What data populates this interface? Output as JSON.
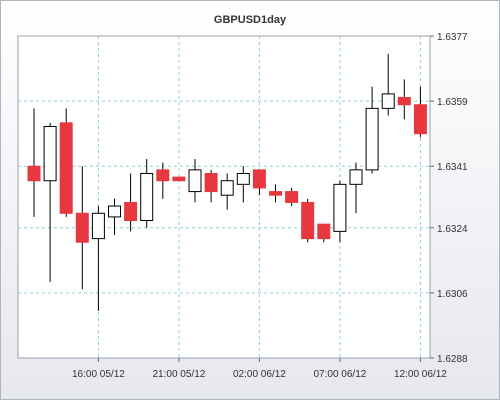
{
  "chart_data": {
    "type": "candlestick",
    "title": "GBPUSD1day",
    "y_axis_side": "right",
    "ylim": [
      1.6288,
      1.6377
    ],
    "y_ticks": [
      "1.6288",
      "1.6306",
      "1.6324",
      "1.6341",
      "1.6359",
      "1.6377"
    ],
    "x_ticks": [
      {
        "label": "16:00 05/12",
        "index": 4
      },
      {
        "label": "21:00 05/12",
        "index": 9
      },
      {
        "label": "02:00 06/12",
        "index": 14
      },
      {
        "label": "07:00 06/12",
        "index": 19
      },
      {
        "label": "12:00 06/12",
        "index": 24
      }
    ],
    "grid": true,
    "up_color": "#ffffff",
    "down_color": "#e8383f",
    "candles": [
      {
        "open": 1.6341,
        "high": 1.6357,
        "low": 1.6327,
        "close": 1.6337
      },
      {
        "open": 1.6337,
        "high": 1.6353,
        "low": 1.6309,
        "close": 1.6352
      },
      {
        "open": 1.6353,
        "high": 1.6357,
        "low": 1.6327,
        "close": 1.6328
      },
      {
        "open": 1.6328,
        "high": 1.6341,
        "low": 1.6307,
        "close": 1.632
      },
      {
        "open": 1.6321,
        "high": 1.633,
        "low": 1.6301,
        "close": 1.6328
      },
      {
        "open": 1.6327,
        "high": 1.6332,
        "low": 1.6322,
        "close": 1.633
      },
      {
        "open": 1.6331,
        "high": 1.6339,
        "low": 1.6323,
        "close": 1.6326
      },
      {
        "open": 1.6326,
        "high": 1.6343,
        "low": 1.6324,
        "close": 1.6339
      },
      {
        "open": 1.634,
        "high": 1.6342,
        "low": 1.6332,
        "close": 1.6337
      },
      {
        "open": 1.6338,
        "high": 1.6338,
        "low": 1.6337,
        "close": 1.6337
      },
      {
        "open": 1.6334,
        "high": 1.6343,
        "low": 1.6331,
        "close": 1.634
      },
      {
        "open": 1.6339,
        "high": 1.634,
        "low": 1.6331,
        "close": 1.6334
      },
      {
        "open": 1.6333,
        "high": 1.6339,
        "low": 1.6329,
        "close": 1.6337
      },
      {
        "open": 1.6336,
        "high": 1.6341,
        "low": 1.6331,
        "close": 1.6339
      },
      {
        "open": 1.634,
        "high": 1.634,
        "low": 1.6333,
        "close": 1.6335
      },
      {
        "open": 1.6334,
        "high": 1.6336,
        "low": 1.6331,
        "close": 1.6333
      },
      {
        "open": 1.6334,
        "high": 1.6335,
        "low": 1.633,
        "close": 1.6331
      },
      {
        "open": 1.6331,
        "high": 1.6332,
        "low": 1.632,
        "close": 1.6321
      },
      {
        "open": 1.6325,
        "high": 1.6325,
        "low": 1.632,
        "close": 1.6321
      },
      {
        "open": 1.6323,
        "high": 1.6337,
        "low": 1.632,
        "close": 1.6336
      },
      {
        "open": 1.6336,
        "high": 1.6342,
        "low": 1.6328,
        "close": 1.634
      },
      {
        "open": 1.634,
        "high": 1.6363,
        "low": 1.6339,
        "close": 1.6357
      },
      {
        "open": 1.6357,
        "high": 1.6372,
        "low": 1.6355,
        "close": 1.6361
      },
      {
        "open": 1.636,
        "high": 1.6365,
        "low": 1.6354,
        "close": 1.6358
      },
      {
        "open": 1.6358,
        "high": 1.6363,
        "low": 1.6349,
        "close": 1.635
      }
    ]
  }
}
